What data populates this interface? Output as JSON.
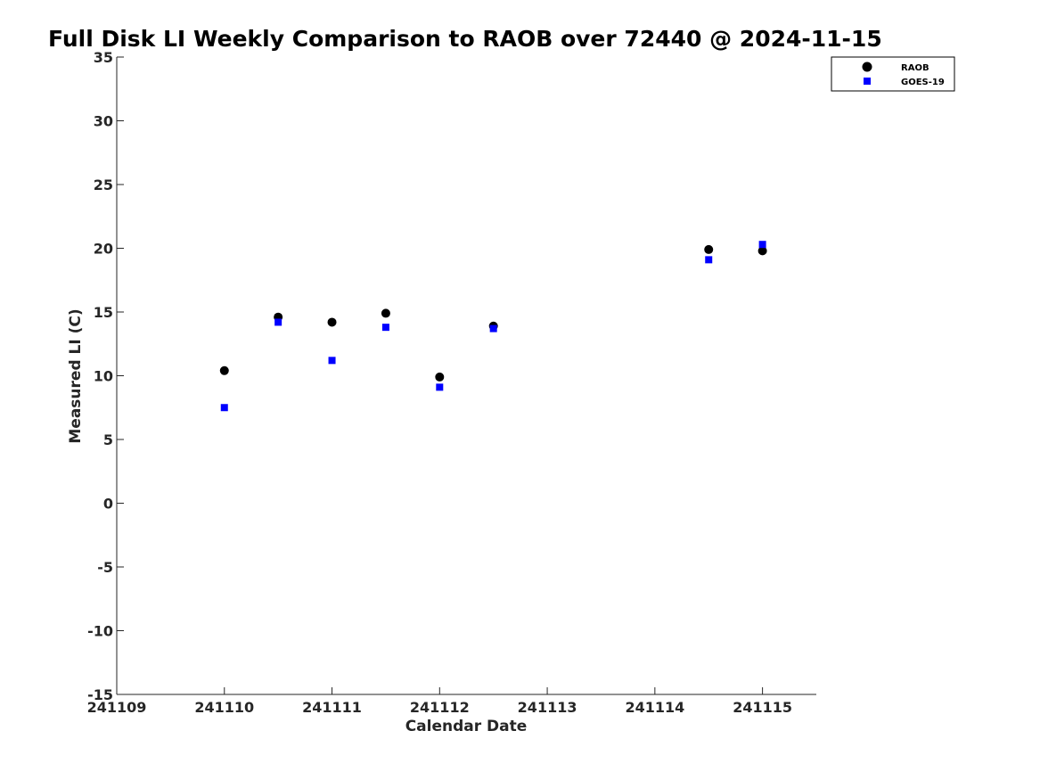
{
  "chart_data": {
    "type": "scatter",
    "title": "Full Disk LI Weekly Comparison to RAOB over 72440 @ 2024-11-15",
    "xlabel": "Calendar Date",
    "ylabel": "Measured LI (C)",
    "xlim": [
      241109,
      241115.5
    ],
    "ylim": [
      -15,
      35
    ],
    "x_ticks": [
      241109,
      241110,
      241111,
      241112,
      241113,
      241114,
      241115
    ],
    "x_tick_labels": [
      "241109",
      "241110",
      "241111",
      "241112",
      "241113",
      "241114",
      "241115"
    ],
    "y_ticks": [
      -15,
      -10,
      -5,
      0,
      5,
      10,
      15,
      20,
      25,
      30,
      35
    ],
    "y_tick_labels": [
      "-15",
      "-10",
      "-5",
      "0",
      "5",
      "10",
      "15",
      "20",
      "25",
      "30",
      "35"
    ],
    "grid": false,
    "legend_position": "top-right",
    "series": [
      {
        "name": "RAOB",
        "marker": "circle",
        "color": "#000000",
        "x": [
          241110,
          241110.5,
          241111,
          241111.5,
          241112,
          241112.5,
          241114.5,
          241115
        ],
        "y": [
          10.4,
          14.6,
          14.2,
          14.9,
          9.9,
          13.9,
          19.9,
          19.8
        ]
      },
      {
        "name": "GOES-19",
        "marker": "square",
        "color": "#0000ff",
        "x": [
          241110,
          241110.5,
          241111,
          241111.5,
          241112,
          241112.5,
          241114.5,
          241115
        ],
        "y": [
          7.5,
          14.2,
          11.2,
          13.8,
          9.1,
          13.7,
          19.1,
          20.3
        ]
      }
    ]
  }
}
